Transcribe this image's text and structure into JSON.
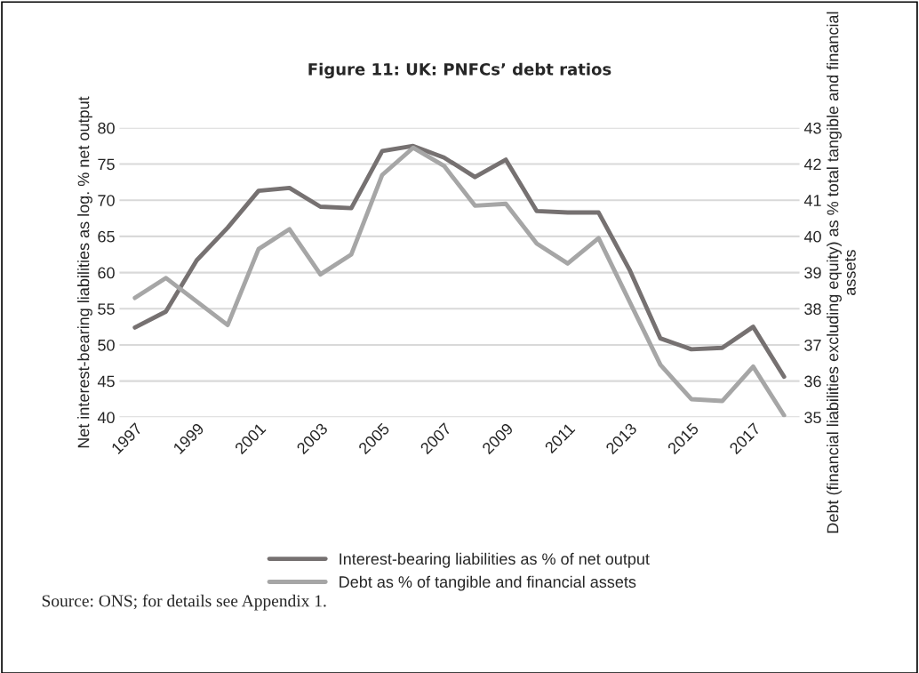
{
  "chart_data": {
    "type": "line",
    "title": "Figure 11: UK: PNFCs’ debt ratios",
    "ylabel": "Net interest-bearing liabilities as log. % net output",
    "y2label": "Debt (financial liabilities excluding equity) as % total tangible and financial assets",
    "x": [
      1997,
      1998,
      1999,
      2000,
      2001,
      2002,
      2003,
      2004,
      2005,
      2006,
      2007,
      2008,
      2009,
      2010,
      2011,
      2012,
      2013,
      2014,
      2015,
      2016,
      2017,
      2018
    ],
    "series": [
      {
        "name": "Interest-bearing liabilities as % of net output",
        "color": "#767171",
        "values": [
          52.4,
          54.6,
          61.7,
          66.2,
          71.3,
          71.7,
          69.1,
          68.9,
          76.8,
          77.5,
          75.9,
          73.2,
          75.6,
          68.5,
          68.3,
          68.3,
          60.4,
          50.9,
          49.4,
          49.6,
          52.5,
          45.6
        ]
      },
      {
        "name": "Debt as % of tangible and financial assets",
        "color": "#a6a6a6",
        "axis": "y2",
        "values": [
          38.3,
          38.85,
          38.2,
          37.55,
          39.65,
          40.2,
          38.95,
          39.5,
          41.7,
          42.45,
          41.95,
          40.85,
          40.9,
          39.8,
          39.25,
          39.95,
          38.2,
          36.45,
          35.5,
          35.45,
          36.4,
          35.05
        ]
      }
    ],
    "xlim": [
      1996.5,
      2018.5
    ],
    "xticks": [
      1997,
      1999,
      2001,
      2003,
      2005,
      2007,
      2009,
      2011,
      2013,
      2015,
      2017
    ],
    "ylim": [
      40,
      80
    ],
    "yticks": [
      40,
      45,
      50,
      55,
      60,
      65,
      70,
      75,
      80
    ],
    "y2lim": [
      35,
      43
    ],
    "y2ticks": [
      35,
      36,
      37,
      38,
      39,
      40,
      41,
      42,
      43
    ],
    "grid": "y",
    "legend": "bottom",
    "annotations": [
      "Source: ONS; for details see Appendix 1."
    ]
  }
}
